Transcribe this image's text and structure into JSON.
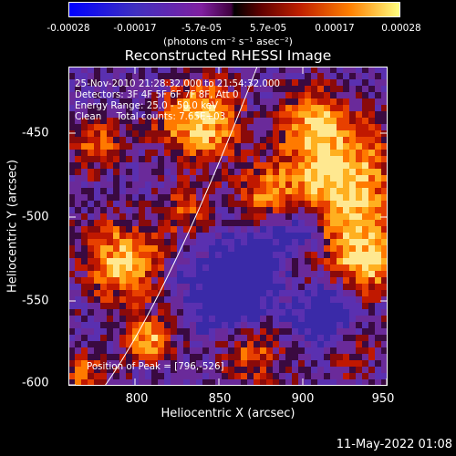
{
  "colorbar": {
    "ticks": [
      "-0.00028",
      "-0.00017",
      "-5.7e-05",
      "5.7e-05",
      "0.00017",
      "0.00028"
    ],
    "units": "(photons cm⁻² s⁻¹ asec⁻²)"
  },
  "title": "Reconstructed RHESSI Image",
  "annotations": {
    "time_range": "25-Nov-2010 21:28:32.000 to 21:54:32.000",
    "detectors": "Detectors: 3F 4F 5F 6F 7F 8F, Att 0",
    "energy": "Energy Range: 25.0 - 50.0 keV",
    "method": "Clean     Total counts: 7.65E+03",
    "peak": "Position of Peak = [796,-526]"
  },
  "axes": {
    "xlabel": "Heliocentric X (arcsec)",
    "ylabel": "Heliocentric Y (arcsec)",
    "x_ticks": [
      "800",
      "850",
      "900",
      "950"
    ],
    "y_ticks": [
      "-450",
      "-500",
      "-550",
      "-600"
    ],
    "xlim": [
      760,
      950
    ],
    "ylim": [
      -603,
      -413
    ]
  },
  "colors": {
    "background": "#000000",
    "text": "#ffffff"
  },
  "datestamp": "11-May-2022 01:08"
}
